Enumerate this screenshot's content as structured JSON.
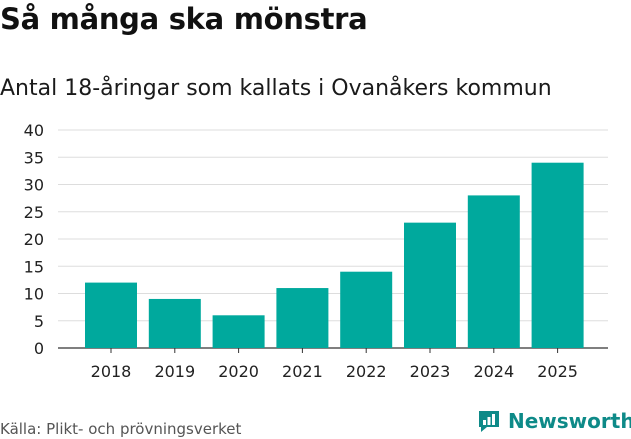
{
  "header": {
    "title": "Så många ska mönstra",
    "subtitle": "Antal 18-åringar som kallats i Ovanåkers kommun"
  },
  "footer": {
    "source": "Källa: Plikt- och prövningsverket",
    "brand": "Newsworthy",
    "brand_icon": "newsworthy-logo-icon"
  },
  "colors": {
    "bar": "#00a99d",
    "grid": "#dddddd",
    "axis": "#333333",
    "brand": "#0e8a88"
  },
  "chart_data": {
    "type": "bar",
    "title": "Så många ska mönstra",
    "subtitle": "Antal 18-åringar som kallats i Ovanåkers kommun",
    "categories": [
      "2018",
      "2019",
      "2020",
      "2021",
      "2022",
      "2023",
      "2024",
      "2025"
    ],
    "values": [
      12,
      9,
      6,
      11,
      14,
      23,
      28,
      34
    ],
    "xlabel": "",
    "ylabel": "",
    "ylim": [
      0,
      40
    ],
    "yticks": [
      0,
      5,
      10,
      15,
      20,
      25,
      30,
      35,
      40
    ],
    "grid": true,
    "legend": "none"
  }
}
